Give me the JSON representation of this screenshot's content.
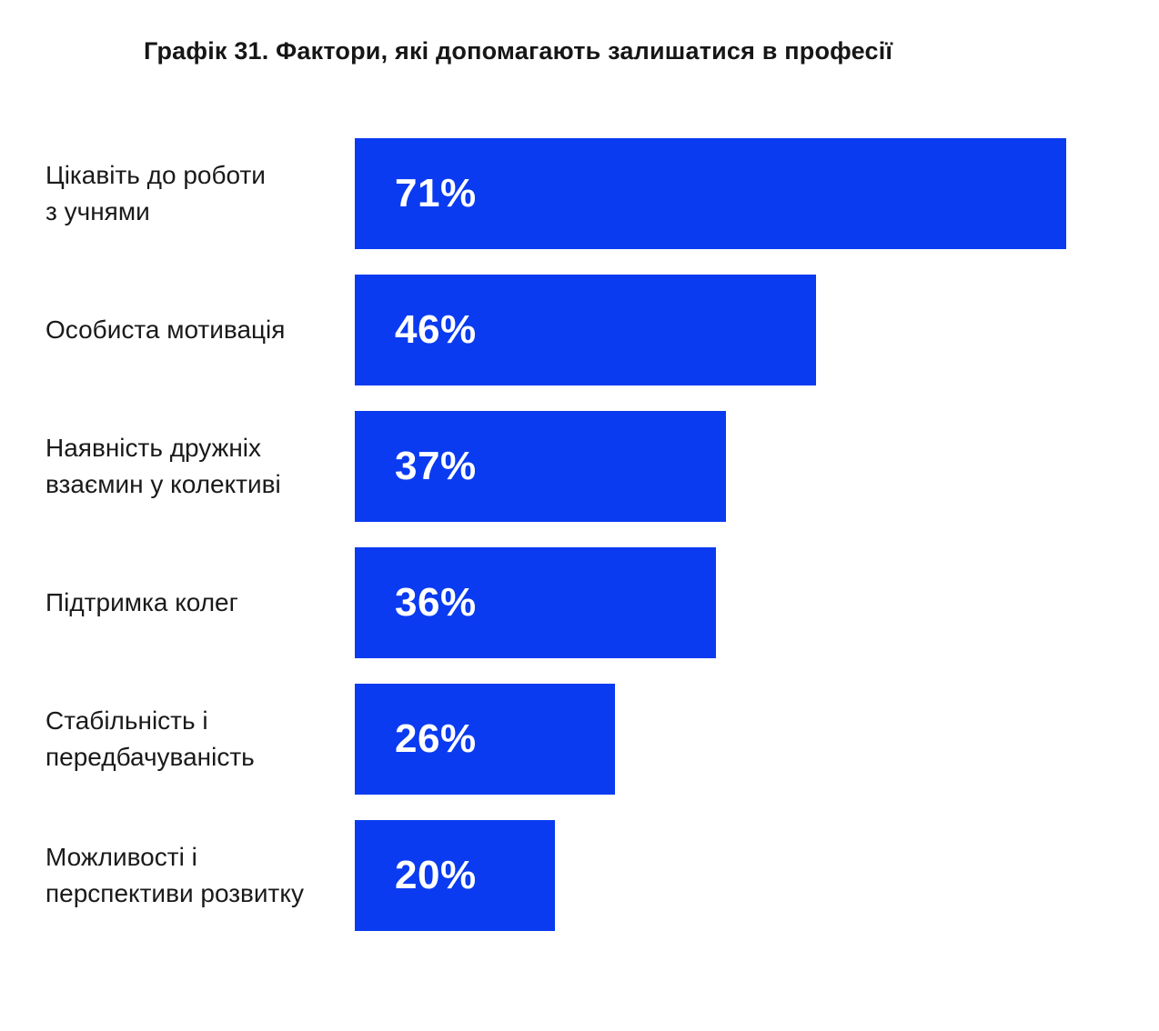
{
  "title": "Графік 31. Фактори, які допомагають залишатися в професії",
  "chart_data": {
    "type": "bar",
    "orientation": "horizontal",
    "title": "Графік 31. Фактори, які допомагають залишатися в професії",
    "categories": [
      "Цікавіть до роботи\nз учнями",
      "Особиста мотивація",
      "Наявність дружніх\nвзаємин у колективі",
      "Підтримка колег",
      "Стабільність і\nпередбачуваність",
      "Можливості і\nперспективи розвитку"
    ],
    "values": [
      71,
      46,
      37,
      36,
      26,
      20
    ],
    "value_labels": [
      "71%",
      "46%",
      "37%",
      "36%",
      "26%",
      "20%"
    ],
    "xlabel": "",
    "ylabel": "",
    "xlim": [
      0,
      71
    ],
    "grid": false,
    "legend": false,
    "colors": {
      "bar": "#0A3BF0",
      "value_label": "#FFFFFF",
      "category_label": "#1A1A1A",
      "title_text": "#161616",
      "background": "#FFFFFF"
    }
  }
}
